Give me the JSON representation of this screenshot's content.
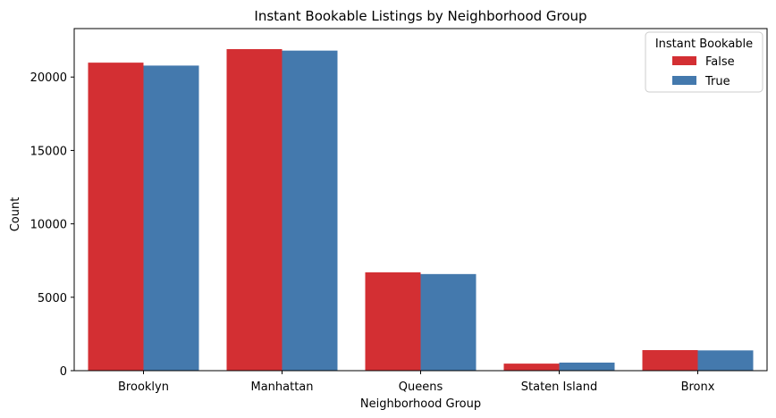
{
  "chart_data": {
    "type": "bar",
    "title": "Instant Bookable Listings by Neighborhood Group",
    "xlabel": "Neighborhood Group",
    "ylabel": "Count",
    "categories": [
      "Brooklyn",
      "Manhattan",
      "Queens",
      "Staten Island",
      "Bronx"
    ],
    "series": [
      {
        "name": "False",
        "color": "#d32f33",
        "values": [
          20980,
          21900,
          6700,
          480,
          1400
        ]
      },
      {
        "name": "True",
        "color": "#4479ad",
        "values": [
          20780,
          21800,
          6580,
          550,
          1380
        ]
      }
    ],
    "ylim": [
      0,
      23300
    ],
    "yticks": [
      0,
      5000,
      10000,
      15000,
      20000
    ],
    "grid": false,
    "legend": {
      "title": "Instant Bookable",
      "placement": "top-right"
    }
  }
}
